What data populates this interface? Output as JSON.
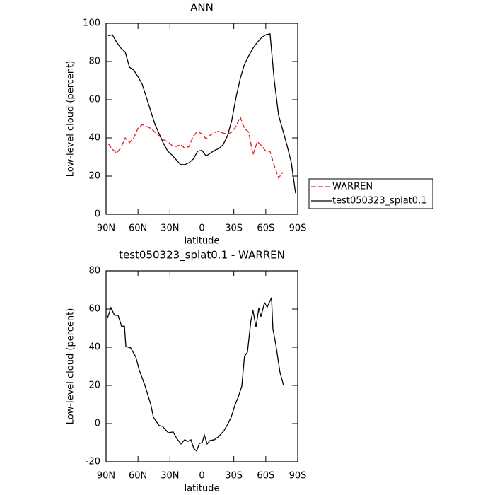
{
  "chart_data": [
    {
      "type": "line",
      "title": "ANN",
      "xlabel": "latitude",
      "ylabel": "Low-level cloud (percent)",
      "x": [
        88,
        84,
        80,
        76,
        72,
        68,
        64,
        60,
        56,
        52,
        48,
        44,
        40,
        36,
        32,
        28,
        24,
        20,
        16,
        12,
        8,
        4,
        0,
        -4,
        -8,
        -12,
        -16,
        -20,
        -24,
        -28,
        -32,
        -36,
        -40,
        -44,
        -48,
        -52,
        -56,
        -60,
        -64,
        -68,
        -72,
        -76,
        -80,
        -84,
        -88
      ],
      "series": [
        {
          "name": "WARREN",
          "color": "#e41a1c",
          "dashed": true,
          "values": [
            37,
            34,
            32,
            35,
            40,
            37.5,
            40,
            45,
            47,
            46,
            45,
            43,
            41,
            39,
            38,
            36,
            35.5,
            36.5,
            34.5,
            35.5,
            41,
            43.5,
            42,
            39.5,
            41.5,
            42.8,
            43.5,
            42.5,
            42,
            43,
            46,
            51,
            45,
            43,
            31,
            38,
            36,
            33,
            33,
            25.5,
            19,
            22,
            null,
            null,
            null
          ]
        },
        {
          "name": "test050323_splat0.1",
          "color": "#000000",
          "dashed": false,
          "values": [
            93.5,
            94,
            90,
            87,
            85,
            77,
            75.5,
            72,
            68,
            61,
            54,
            47,
            42,
            37,
            33,
            31,
            28.5,
            26,
            26,
            27,
            29,
            33,
            33.5,
            30.5,
            32,
            33.5,
            34.4,
            36.5,
            41,
            49,
            61,
            71,
            78.5,
            83,
            87,
            90,
            92.5,
            94,
            94.5,
            70,
            52,
            44,
            36,
            27,
            11
          ]
        }
      ],
      "xlim": [
        90,
        -90
      ],
      "xticks": [
        {
          "value": 90,
          "label": "90N"
        },
        {
          "value": 60,
          "label": "60N"
        },
        {
          "value": 30,
          "label": "30N"
        },
        0,
        {
          "value": -30,
          "label": "30S"
        },
        {
          "value": -60,
          "label": "60S"
        },
        {
          "value": -90,
          "label": "90S"
        }
      ],
      "ylim": [
        0,
        100
      ],
      "yticks": [
        0,
        20,
        40,
        60,
        80,
        100
      ],
      "legend": "right"
    },
    {
      "type": "line",
      "title": "test050323_splat0.1 - WARREN",
      "xlabel": "latitude",
      "ylabel": "Low-level cloud (percent)",
      "x": [
        88.7,
        85.4,
        82,
        78.7,
        75.4,
        72.7,
        71.4,
        66.8,
        62,
        58.8,
        53.5,
        48,
        45.5,
        40.2,
        36.9,
        31.6,
        27,
        23.6,
        19.6,
        16.3,
        13,
        10.3,
        7.6,
        5,
        2.3,
        -0.3,
        -2.3,
        -5,
        -7.6,
        -11.6,
        -16,
        -20.8,
        -24.2,
        -27.5,
        -30.8,
        -34,
        -37.5,
        -40,
        -42.8,
        -46,
        -48,
        -50.8,
        -53.5,
        -55.4,
        -58.8,
        -61.4,
        -65.4,
        -66.7,
        -69.4,
        -73.4,
        -76.7
      ],
      "series": [
        {
          "color": "#000000",
          "dashed": false,
          "values": [
            55.2,
            60.7,
            56.7,
            56.7,
            51,
            51,
            40.4,
            39.6,
            34.8,
            28,
            20,
            10,
            3.3,
            -1,
            -1.5,
            -4.8,
            -4.4,
            -7.8,
            -10.7,
            -8.5,
            -9.3,
            -8.5,
            -13,
            -14.4,
            -10.4,
            -10,
            -6,
            -10.7,
            -8.9,
            -8.5,
            -6.7,
            -3.7,
            -0.4,
            3.3,
            9.3,
            13.7,
            19.6,
            35.2,
            37.4,
            53.7,
            59.3,
            50.4,
            60.7,
            56,
            63.3,
            61,
            66,
            49.6,
            41.5,
            26.7,
            20
          ]
        }
      ],
      "xlim": [
        90,
        -90
      ],
      "xticks": [
        {
          "value": 90,
          "label": "90N"
        },
        {
          "value": 60,
          "label": "60N"
        },
        {
          "value": 30,
          "label": "30N"
        },
        0,
        {
          "value": -30,
          "label": "30S"
        },
        {
          "value": -60,
          "label": "60S"
        },
        {
          "value": -90,
          "label": "90S"
        }
      ],
      "ylim": [
        -20,
        80
      ],
      "yticks": [
        -20,
        0,
        20,
        40,
        60,
        80
      ]
    }
  ]
}
